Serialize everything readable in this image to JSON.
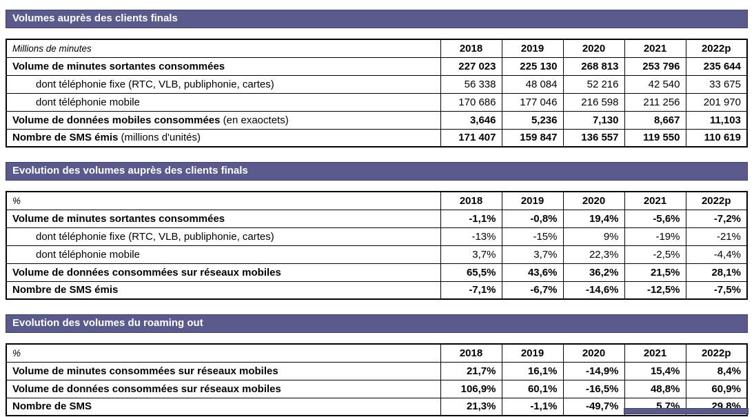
{
  "colors": {
    "header_bg": "#5b5a8c",
    "header_text": "#ffffff",
    "table_border": "#000000"
  },
  "tables": [
    {
      "title": "Volumes auprès des clients finals",
      "unit_label": "Millions de minutes",
      "years": [
        "2018",
        "2019",
        "2020",
        "2021",
        "2022p"
      ],
      "rows": [
        {
          "label": "Volume de minutes sortantes consommées",
          "suffix": "",
          "bold": true,
          "indent": false,
          "values": [
            "227 023",
            "225 130",
            "268 813",
            "253 796",
            "235 644"
          ]
        },
        {
          "label": "dont téléphonie fixe (RTC, VLB, publiphonie, cartes)",
          "suffix": "",
          "bold": false,
          "indent": true,
          "values": [
            "56 338",
            "48 084",
            "52 216",
            "42 540",
            "33 675"
          ]
        },
        {
          "label": "dont téléphonie mobile",
          "suffix": "",
          "bold": false,
          "indent": true,
          "values": [
            "170 686",
            "177 046",
            "216 598",
            "211 256",
            "201 970"
          ]
        },
        {
          "label": "Volume de données mobiles consommées",
          "suffix": "(en exaoctets)",
          "bold": true,
          "indent": false,
          "values": [
            "3,646",
            "5,236",
            "7,130",
            "8,667",
            "11,103"
          ]
        },
        {
          "label": "Nombre de SMS émis",
          "suffix": "(millions d'unités)",
          "bold": true,
          "indent": false,
          "values": [
            "171 407",
            "159 847",
            "136 557",
            "119 550",
            "110 619"
          ]
        }
      ]
    },
    {
      "title": "Evolution des volumes auprès des clients finals",
      "unit_label": "%",
      "years": [
        "2018",
        "2019",
        "2020",
        "2021",
        "2022p"
      ],
      "rows": [
        {
          "label": "Volume de minutes sortantes consommées",
          "suffix": "",
          "bold": true,
          "indent": false,
          "values": [
            "-1,1%",
            "-0,8%",
            "19,4%",
            "-5,6%",
            "-7,2%"
          ]
        },
        {
          "label": "dont téléphonie fixe (RTC, VLB, publiphonie, cartes)",
          "suffix": "",
          "bold": false,
          "indent": true,
          "values": [
            "-13%",
            "-15%",
            "9%",
            "-19%",
            "-21%"
          ]
        },
        {
          "label": "dont téléphonie mobile",
          "suffix": "",
          "bold": false,
          "indent": true,
          "values": [
            "3,7%",
            "3,7%",
            "22,3%",
            "-2,5%",
            "-4,4%"
          ]
        },
        {
          "label": "Volume de données consommées sur réseaux mobiles",
          "suffix": "",
          "bold": true,
          "indent": false,
          "values": [
            "65,5%",
            "43,6%",
            "36,2%",
            "21,5%",
            "28,1%"
          ]
        },
        {
          "label": "Nombre de SMS émis",
          "suffix": "",
          "bold": true,
          "indent": false,
          "values": [
            "-7,1%",
            "-6,7%",
            "-14,6%",
            "-12,5%",
            "-7,5%"
          ]
        }
      ]
    },
    {
      "title": "Evolution des volumes du roaming out",
      "unit_label": "%",
      "years": [
        "2018",
        "2019",
        "2020",
        "2021",
        "2022p"
      ],
      "rows": [
        {
          "label": "Volume de minutes consommées sur réseaux mobiles",
          "suffix": "",
          "bold": true,
          "indent": false,
          "values": [
            "21,7%",
            "16,1%",
            "-14,9%",
            "15,4%",
            "8,4%"
          ]
        },
        {
          "label": "Volume de données consommées sur réseaux mobiles",
          "suffix": "",
          "bold": true,
          "indent": false,
          "values": [
            "106,9%",
            "60,1%",
            "-16,5%",
            "48,8%",
            "60,9%"
          ]
        },
        {
          "label": "Nombre de SMS",
          "suffix": "",
          "bold": true,
          "indent": false,
          "values": [
            "21,3%",
            "-1,1%",
            "-49,7%",
            "5,7%",
            "29,8%"
          ]
        }
      ]
    }
  ]
}
